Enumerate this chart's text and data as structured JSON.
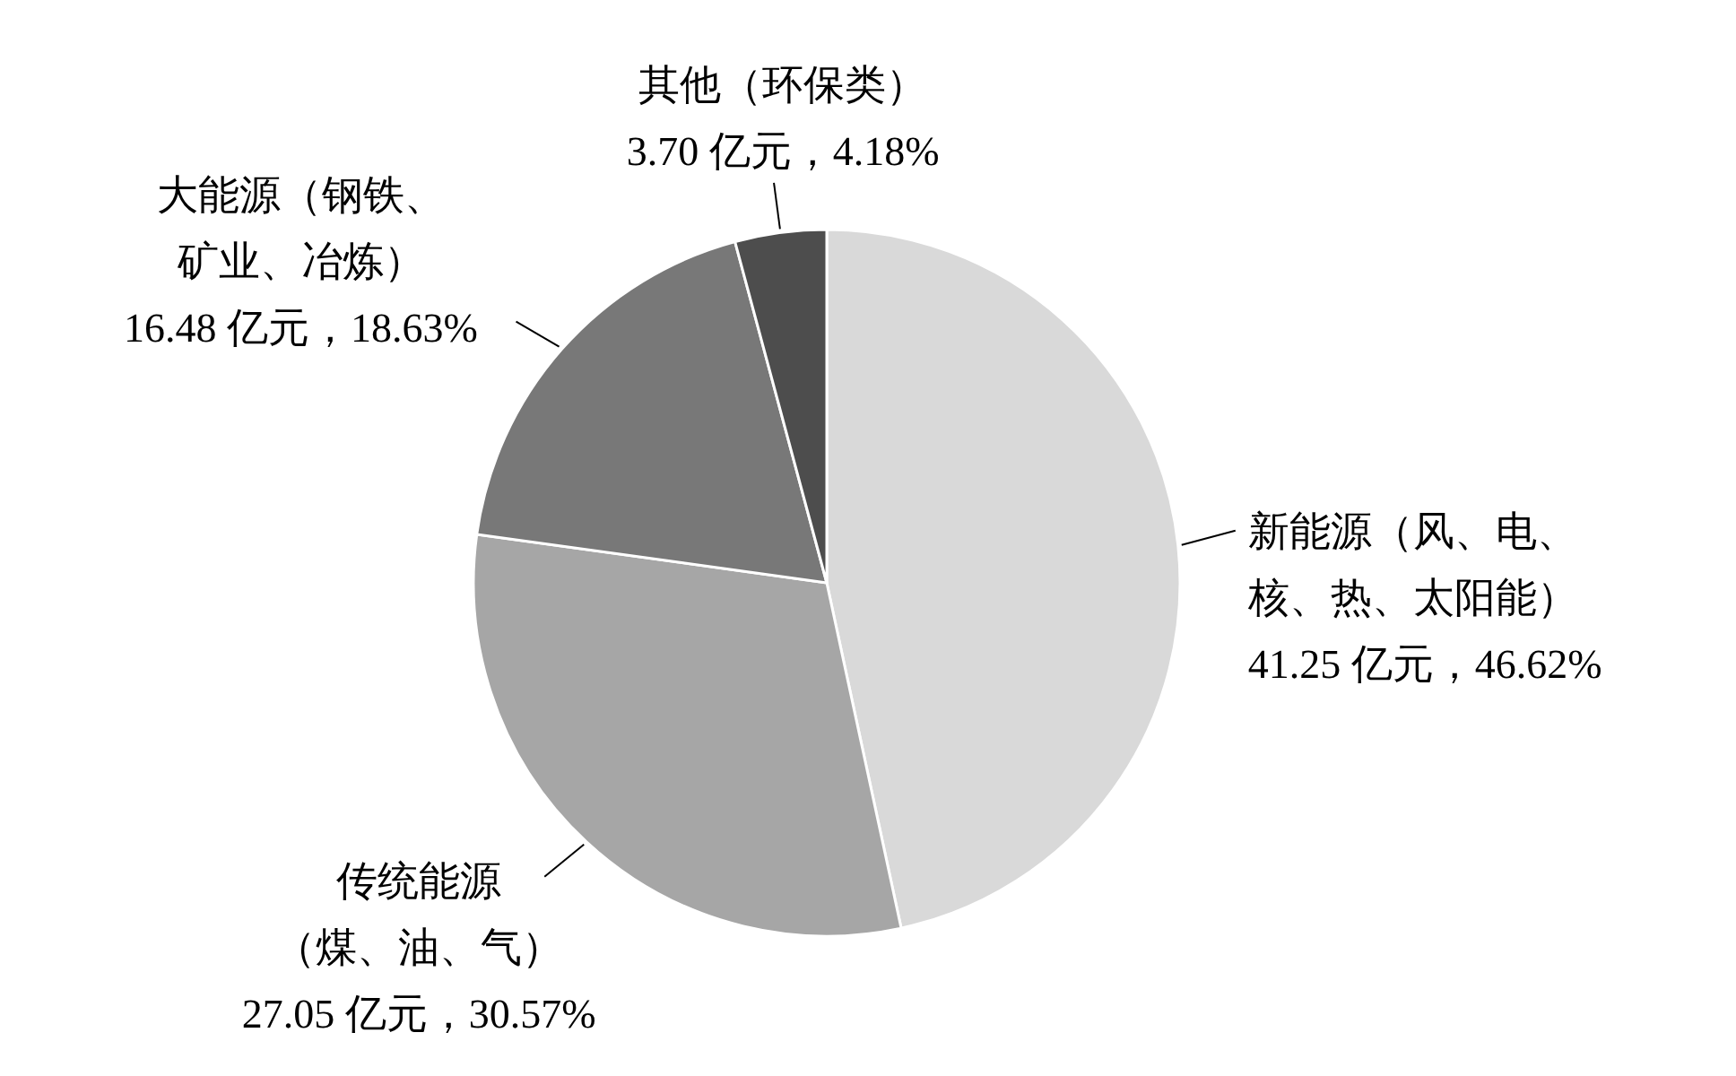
{
  "chart_data": {
    "type": "pie",
    "categories": [
      "新能源（风、电、核、热、太阳能）",
      "传统能源（煤、油、气）",
      "大能源（钢铁、矿业、冶炼）",
      "其他（环保类）"
    ],
    "values": [
      41.25,
      27.05,
      16.48,
      3.7
    ],
    "value_labels": [
      "41.25 亿元，46.62%",
      "27.05 亿元，30.57%",
      "16.48 亿元，18.63%",
      "3.70 亿元，4.18%"
    ],
    "colors": [
      "#d9d9d9",
      "#a6a6a6",
      "#787878",
      "#4d4d4d"
    ]
  }
}
